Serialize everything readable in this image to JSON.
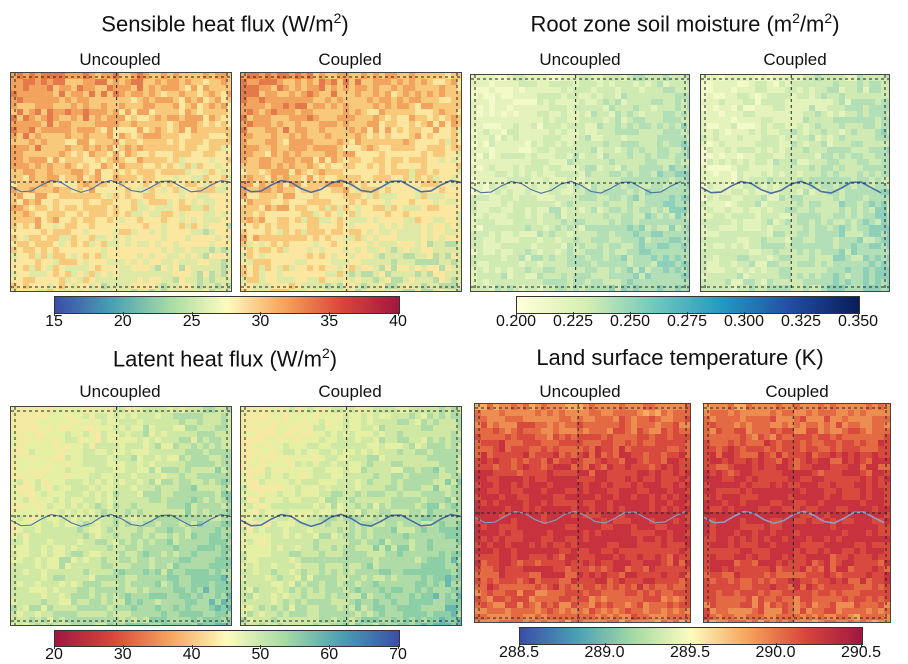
{
  "panels": {
    "sensible": {
      "title": "Sensible heat flux (W/m",
      "title_sup": "2",
      "title_end": ")",
      "left_label": "Uncoupled",
      "right_label": "Coupled",
      "colorbar": {
        "ticks": [
          "15",
          "20",
          "25",
          "30",
          "35",
          "40"
        ],
        "colormap": "Spectral_r",
        "colors": [
          "#3b4ea6",
          "#4b9fb5",
          "#a6dba4",
          "#fdfbbf",
          "#f6a35c",
          "#d8463b",
          "#a01740"
        ]
      }
    },
    "soil": {
      "title": "Root zone soil moisture (m",
      "title_sup": "2",
      "title_mid": "/m",
      "title_sup2": "2",
      "title_end": ")",
      "left_label": "Uncoupled",
      "right_label": "Coupled",
      "colorbar": {
        "ticks": [
          "0.200",
          "0.225",
          "0.250",
          "0.275",
          "0.300",
          "0.325",
          "0.350"
        ],
        "colormap": "YlGnBu",
        "colors": [
          "#ffffd9",
          "#d6efb3",
          "#73c8bd",
          "#2498c1",
          "#234da0",
          "#081d58"
        ]
      }
    },
    "latent": {
      "title": "Latent heat flux (W/m",
      "title_sup": "2",
      "title_end": ")",
      "left_label": "Uncoupled",
      "right_label": "Coupled",
      "colorbar": {
        "ticks": [
          "20",
          "30",
          "40",
          "50",
          "60",
          "70"
        ],
        "colormap": "Spectral",
        "colors": [
          "#a01740",
          "#d8463b",
          "#f6a35c",
          "#fdfbbf",
          "#a6dba4",
          "#4b9fb5",
          "#3b4ea6"
        ]
      }
    },
    "lst": {
      "title": "Land surface temperature (K)",
      "left_label": "Uncoupled",
      "right_label": "Coupled",
      "colorbar": {
        "ticks": [
          "288.5",
          "289.0",
          "289.5",
          "290.0",
          "290.5"
        ],
        "colormap": "Spectral_r",
        "colors": [
          "#3b4ea6",
          "#4b9fb5",
          "#a6dba4",
          "#fdfbbf",
          "#f6a35c",
          "#d8463b",
          "#a01740"
        ]
      }
    }
  }
}
